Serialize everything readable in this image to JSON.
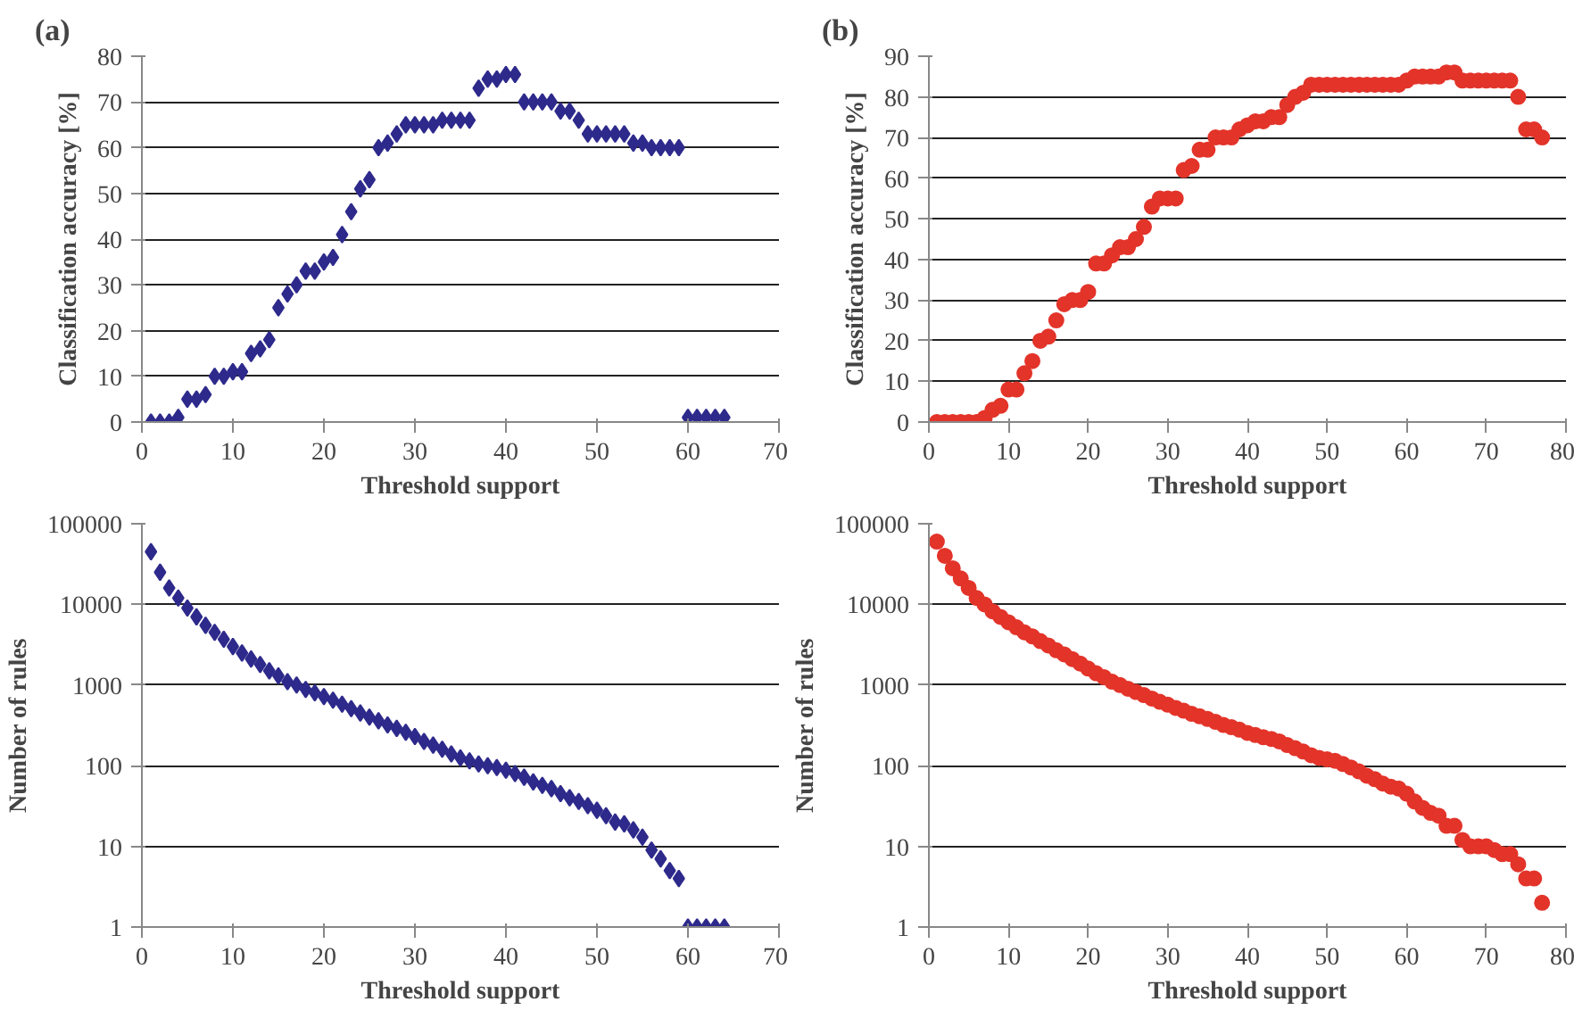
{
  "chart_data": [
    {
      "type": "scatter",
      "title": "(a)",
      "xlabel": "Threshold support",
      "ylabel": "Classification accuracy [%]",
      "xlim": [
        0,
        70
      ],
      "xticks": [
        0,
        10,
        20,
        30,
        40,
        50,
        60,
        70
      ],
      "ylim": [
        0,
        80
      ],
      "yticks": [
        0,
        10,
        20,
        30,
        40,
        50,
        60,
        70,
        80
      ],
      "grid": "y",
      "marker": "diamond",
      "series": [
        {
          "color": "#2e2a8c",
          "x": [
            1,
            2,
            3,
            4,
            5,
            6,
            7,
            8,
            9,
            10,
            11,
            12,
            13,
            14,
            15,
            16,
            17,
            18,
            19,
            20,
            21,
            22,
            23,
            24,
            25,
            26,
            27,
            28,
            29,
            30,
            31,
            32,
            33,
            34,
            35,
            36,
            37,
            38,
            39,
            40,
            41,
            42,
            43,
            44,
            45,
            46,
            47,
            48,
            49,
            50,
            51,
            52,
            53,
            54,
            55,
            56,
            57,
            58,
            59,
            60,
            61,
            62,
            63,
            64
          ],
          "values": [
            0,
            0,
            0,
            1,
            5,
            5,
            6,
            10,
            10,
            11,
            11,
            15,
            16,
            18,
            25,
            28,
            30,
            33,
            33,
            35,
            36,
            41,
            46,
            51,
            53,
            60,
            61,
            63,
            65,
            65,
            65,
            65,
            66,
            66,
            66,
            66,
            73,
            75,
            75,
            76,
            76,
            70,
            70,
            70,
            70,
            68,
            68,
            66,
            63,
            63,
            63,
            63,
            63,
            61,
            61,
            60,
            60,
            60,
            60,
            1,
            1,
            1,
            1,
            1
          ]
        }
      ]
    },
    {
      "type": "scatter",
      "title": "(b)",
      "xlabel": "Threshold support",
      "ylabel": "Classification accuracy [%]",
      "xlim": [
        0,
        80
      ],
      "xticks": [
        0,
        10,
        20,
        30,
        40,
        50,
        60,
        70,
        80
      ],
      "ylim": [
        0,
        90
      ],
      "yticks": [
        0,
        10,
        20,
        30,
        40,
        50,
        60,
        70,
        80,
        90
      ],
      "grid": "y",
      "marker": "circle",
      "series": [
        {
          "color": "#e3342a",
          "x": [
            1,
            2,
            3,
            4,
            5,
            6,
            7,
            8,
            9,
            10,
            11,
            12,
            13,
            14,
            15,
            16,
            17,
            18,
            19,
            20,
            21,
            22,
            23,
            24,
            25,
            26,
            27,
            28,
            29,
            30,
            31,
            32,
            33,
            34,
            35,
            36,
            37,
            38,
            39,
            40,
            41,
            42,
            43,
            44,
            45,
            46,
            47,
            48,
            49,
            50,
            51,
            52,
            53,
            54,
            55,
            56,
            57,
            58,
            59,
            60,
            61,
            62,
            63,
            64,
            65,
            66,
            67,
            68,
            69,
            70,
            71,
            72,
            73,
            74,
            75,
            76,
            77
          ],
          "values": [
            0,
            0,
            0,
            0,
            0,
            0,
            1,
            3,
            4,
            8,
            8,
            12,
            15,
            20,
            21,
            25,
            29,
            30,
            30,
            32,
            39,
            39,
            41,
            43,
            43,
            45,
            48,
            53,
            55,
            55,
            55,
            62,
            63,
            67,
            67,
            70,
            70,
            70,
            72,
            73,
            74,
            74,
            75,
            75,
            78,
            80,
            81,
            83,
            83,
            83,
            83,
            83,
            83,
            83,
            83,
            83,
            83,
            83,
            83,
            84,
            85,
            85,
            85,
            85,
            86,
            86,
            84,
            84,
            84,
            84,
            84,
            84,
            84,
            80,
            72,
            72,
            70
          ]
        }
      ]
    },
    {
      "type": "scatter",
      "xlabel": "Threshold support",
      "ylabel": "Number of rules",
      "log": "y",
      "xlim": [
        0,
        70
      ],
      "xticks": [
        0,
        10,
        20,
        30,
        40,
        50,
        60,
        70
      ],
      "ylim": [
        1,
        100000
      ],
      "yticks": [
        1,
        10,
        100,
        1000,
        10000,
        100000
      ],
      "grid": "y",
      "marker": "diamond",
      "series": [
        {
          "color": "#2e2a8c",
          "x": [
            1,
            2,
            3,
            4,
            5,
            6,
            7,
            8,
            9,
            10,
            11,
            12,
            13,
            14,
            15,
            16,
            17,
            18,
            19,
            20,
            21,
            22,
            23,
            24,
            25,
            26,
            27,
            28,
            29,
            30,
            31,
            32,
            33,
            34,
            35,
            36,
            37,
            38,
            39,
            40,
            41,
            42,
            43,
            44,
            45,
            46,
            47,
            48,
            49,
            50,
            51,
            52,
            53,
            54,
            55,
            56,
            57,
            58,
            59,
            60,
            61,
            62,
            63,
            64
          ],
          "values": [
            45000,
            25000,
            16000,
            12000,
            9000,
            7000,
            5500,
            4500,
            3700,
            3000,
            2500,
            2100,
            1800,
            1500,
            1300,
            1100,
            1000,
            880,
            800,
            720,
            650,
            580,
            510,
            450,
            400,
            360,
            320,
            290,
            260,
            230,
            200,
            180,
            160,
            140,
            125,
            115,
            105,
            100,
            95,
            88,
            80,
            72,
            63,
            57,
            52,
            45,
            40,
            36,
            32,
            28,
            24,
            20,
            19,
            16,
            13,
            9,
            7,
            5,
            4,
            1,
            1,
            1,
            1,
            1
          ]
        }
      ]
    },
    {
      "type": "scatter",
      "xlabel": "Threshold support",
      "ylabel": "Number of rules",
      "log": "y",
      "xlim": [
        0,
        80
      ],
      "xticks": [
        0,
        10,
        20,
        30,
        40,
        50,
        60,
        70,
        80
      ],
      "ylim": [
        1,
        100000
      ],
      "yticks": [
        1,
        10,
        100,
        1000,
        10000,
        100000
      ],
      "grid": "y",
      "marker": "circle",
      "series": [
        {
          "color": "#e3342a",
          "x": [
            1,
            2,
            3,
            4,
            5,
            6,
            7,
            8,
            9,
            10,
            11,
            12,
            13,
            14,
            15,
            16,
            17,
            18,
            19,
            20,
            21,
            22,
            23,
            24,
            25,
            26,
            27,
            28,
            29,
            30,
            31,
            32,
            33,
            34,
            35,
            36,
            37,
            38,
            39,
            40,
            41,
            42,
            43,
            44,
            45,
            46,
            47,
            48,
            49,
            50,
            51,
            52,
            53,
            54,
            55,
            56,
            57,
            58,
            59,
            60,
            61,
            62,
            63,
            64,
            65,
            66,
            67,
            68,
            69,
            70,
            71,
            72,
            73,
            74,
            75,
            76,
            77
          ],
          "values": [
            60000,
            40000,
            28000,
            21000,
            16000,
            12000,
            10000,
            8200,
            7000,
            6000,
            5200,
            4500,
            4000,
            3500,
            3100,
            2700,
            2400,
            2100,
            1850,
            1600,
            1400,
            1250,
            1100,
            1000,
            900,
            820,
            750,
            680,
            620,
            570,
            520,
            480,
            440,
            410,
            380,
            350,
            320,
            300,
            280,
            255,
            240,
            225,
            215,
            200,
            180,
            165,
            150,
            135,
            125,
            120,
            115,
            105,
            95,
            85,
            75,
            68,
            60,
            55,
            52,
            45,
            36,
            30,
            26,
            24,
            18,
            18,
            12,
            10,
            10,
            10,
            9,
            8,
            8,
            6,
            4,
            4,
            2
          ]
        }
      ]
    }
  ]
}
